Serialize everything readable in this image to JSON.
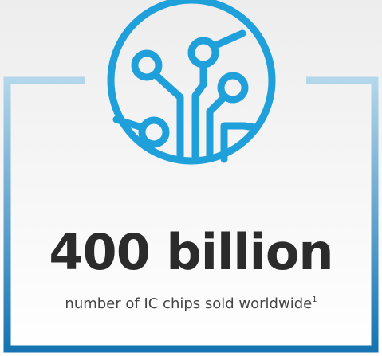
{
  "stat": {
    "value": "400 billion",
    "caption": "number of IC chips sold worldwide",
    "footnote": "1"
  }
}
